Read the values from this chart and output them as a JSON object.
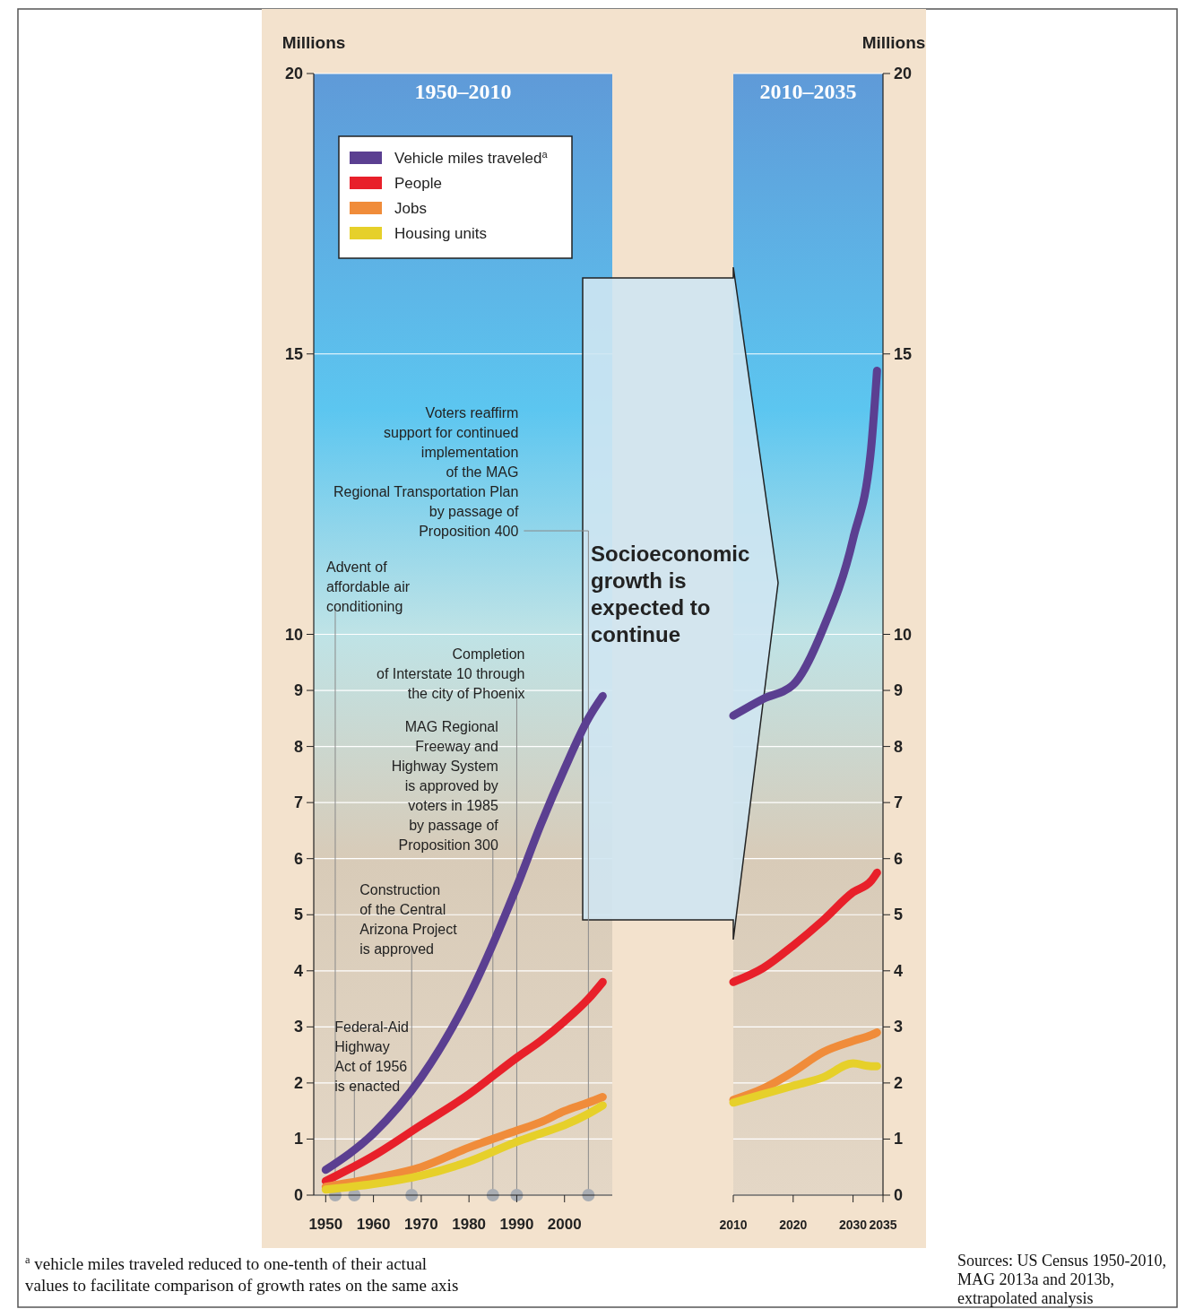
{
  "chart_data": [
    {
      "type": "line",
      "title": "1950–2010",
      "ylabel": "Millions",
      "x": [
        1950,
        1960,
        1970,
        1980,
        1990,
        1995,
        2000,
        2005,
        2008
      ],
      "xlim": [
        1947.5,
        2010
      ],
      "xticks": [
        1950,
        1960,
        1970,
        1980,
        1990,
        2000
      ],
      "ylim": [
        0,
        20
      ],
      "yticks": [
        0,
        1,
        2,
        3,
        4,
        5,
        6,
        7,
        8,
        9,
        10,
        15,
        20
      ],
      "grid": "y",
      "legend": "top left",
      "series": [
        {
          "name": "Vehicle miles traveled$^{a}$",
          "color": "#5b3f91",
          "values": [
            0.45,
            1.1,
            2.1,
            3.55,
            5.5,
            6.6,
            7.6,
            8.5,
            8.9
          ]
        },
        {
          "name": "People",
          "color": "#e8202a",
          "values": [
            0.25,
            0.7,
            1.25,
            1.8,
            2.45,
            2.75,
            3.1,
            3.5,
            3.8
          ]
        },
        {
          "name": "Jobs",
          "color": "#f08c3a",
          "values": [
            0.15,
            0.3,
            0.5,
            0.85,
            1.15,
            1.3,
            1.5,
            1.65,
            1.75
          ]
        },
        {
          "name": "Housing units",
          "color": "#e6d02a",
          "values": [
            0.1,
            0.2,
            0.35,
            0.6,
            0.95,
            1.1,
            1.25,
            1.45,
            1.6
          ]
        }
      ],
      "ref_lines": [
        {
          "axis": "x",
          "value": 1952,
          "label": "Advent of\naffordable air\nconditioning"
        },
        {
          "axis": "x",
          "value": 1956,
          "label": "Federal-Aid\nHighway\nAct of 1956\nis enacted"
        },
        {
          "axis": "x",
          "value": 1968,
          "label": "Construction\nof the Central\nArizona Project\nis approved"
        },
        {
          "axis": "x",
          "value": 1985,
          "label": "MAG Regional\nFreeway and\nHighway System\nis approved by\nvoters in 1985\nby passage of\nProposition 300"
        },
        {
          "axis": "x",
          "value": 1990,
          "label": "Completion\nof Interstate 10 through\nthe city of Phoenix"
        },
        {
          "axis": "x",
          "value": 2005,
          "label": "Voters reaffirm\nsupport for continued\nimplementation\nof the MAG\nRegional Transportation Plan\nby passage of\nProposition 400"
        }
      ],
      "annotations": [
        "Socioeconomic growth is expected to continue",
        "$^{a}$ vehicle miles traveled reduced to one-tenth of their actual values to facilitate comparison of growth rates on the same axis"
      ]
    },
    {
      "type": "line",
      "title": "2010–2035",
      "ylabel": "Millions",
      "x": [
        2010,
        2015,
        2020,
        2025,
        2030,
        2033,
        2034
      ],
      "xlim": [
        2010,
        2035
      ],
      "xticks": [
        2010,
        2020,
        2030,
        2035
      ],
      "ylim": [
        0,
        20
      ],
      "yticks": [
        0,
        1,
        2,
        3,
        4,
        5,
        6,
        7,
        8,
        9,
        10,
        15,
        20
      ],
      "grid": "y",
      "series": [
        {
          "color": "#5b3f91",
          "values": [
            8.55,
            8.85,
            9.1,
            10.1,
            11.7,
            13.3,
            14.7
          ]
        },
        {
          "color": "#e8202a",
          "values": [
            3.8,
            4.05,
            4.45,
            4.9,
            5.4,
            5.6,
            5.75
          ]
        },
        {
          "color": "#f08c3a",
          "values": [
            1.7,
            1.9,
            2.2,
            2.55,
            2.75,
            2.85,
            2.9
          ]
        },
        {
          "color": "#e6d02a",
          "values": [
            1.65,
            1.8,
            1.95,
            2.1,
            2.35,
            2.3,
            2.3
          ]
        }
      ],
      "annotations": [
        "Sources: US Census 1950-2010, MAG 2013a and 2013b, extrapolated analysis"
      ]
    }
  ]
}
